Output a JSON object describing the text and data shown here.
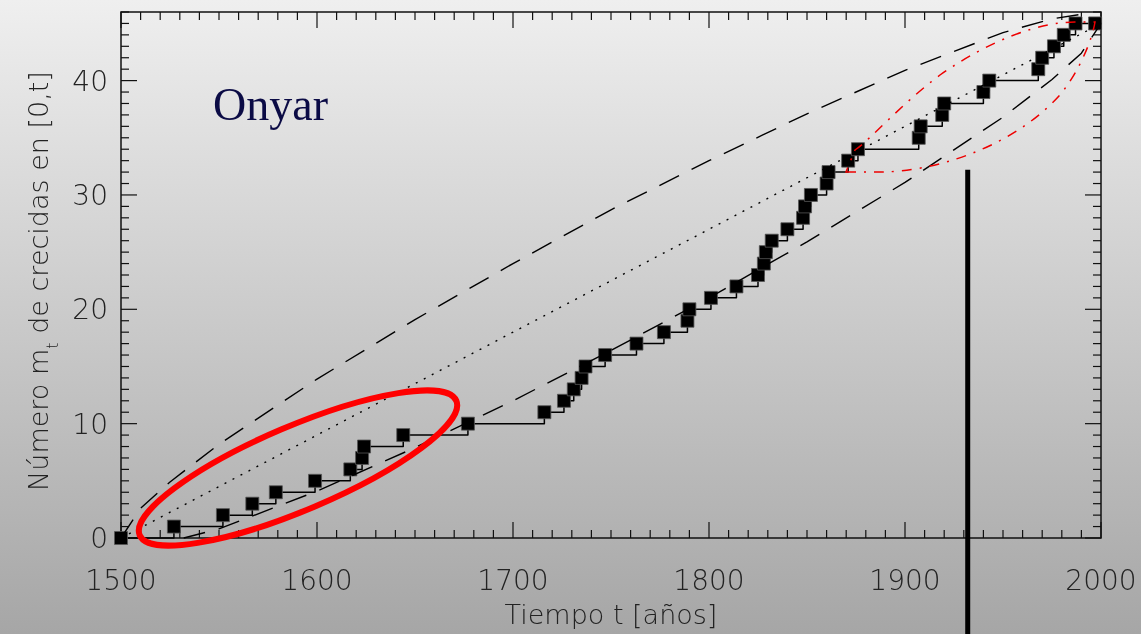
{
  "chart_data": {
    "type": "step",
    "title": "Onyar",
    "xlabel": "Tiempo t [años]",
    "ylabel": "Número m$_{t}$ de crecidas en [0,t]",
    "xlim": [
      1500,
      2000
    ],
    "ylim": [
      0,
      46
    ],
    "xticks": [
      1500,
      {
        "value": 1510,
        "label": null
      },
      {
        "value": 1520,
        "label": null
      },
      {
        "value": 1530,
        "label": null
      },
      {
        "value": 1540,
        "label": null
      },
      {
        "value": 1550,
        "label": null
      },
      {
        "value": 1560,
        "label": null
      },
      {
        "value": 1570,
        "label": null
      },
      {
        "value": 1580,
        "label": null
      },
      {
        "value": 1590,
        "label": null
      },
      1600,
      {
        "value": 1610,
        "label": null
      },
      {
        "value": 1620,
        "label": null
      },
      {
        "value": 1630,
        "label": null
      },
      {
        "value": 1640,
        "label": null
      },
      {
        "value": 1650,
        "label": null
      },
      {
        "value": 1660,
        "label": null
      },
      {
        "value": 1670,
        "label": null
      },
      {
        "value": 1680,
        "label": null
      },
      {
        "value": 1690,
        "label": null
      },
      1700,
      {
        "value": 1710,
        "label": null
      },
      {
        "value": 1720,
        "label": null
      },
      {
        "value": 1730,
        "label": null
      },
      {
        "value": 1740,
        "label": null
      },
      {
        "value": 1750,
        "label": null
      },
      {
        "value": 1760,
        "label": null
      },
      {
        "value": 1770,
        "label": null
      },
      {
        "value": 1780,
        "label": null
      },
      {
        "value": 1790,
        "label": null
      },
      1800,
      {
        "value": 1810,
        "label": null
      },
      {
        "value": 1820,
        "label": null
      },
      {
        "value": 1830,
        "label": null
      },
      {
        "value": 1840,
        "label": null
      },
      {
        "value": 1850,
        "label": null
      },
      {
        "value": 1860,
        "label": null
      },
      {
        "value": 1870,
        "label": null
      },
      {
        "value": 1880,
        "label": null
      },
      {
        "value": 1890,
        "label": null
      },
      1900,
      {
        "value": 1910,
        "label": null
      },
      {
        "value": 1920,
        "label": null
      },
      {
        "value": 1930,
        "label": null
      },
      {
        "value": 1940,
        "label": null
      },
      {
        "value": 1950,
        "label": null
      },
      {
        "value": 1960,
        "label": null
      },
      {
        "value": 1970,
        "label": null
      },
      {
        "value": 1980,
        "label": null
      },
      {
        "value": 1990,
        "label": null
      },
      2000
    ],
    "yticks": [
      0,
      {
        "value": 1,
        "label": null
      },
      {
        "value": 2,
        "label": null
      },
      {
        "value": 3,
        "label": null
      },
      {
        "value": 4,
        "label": null
      },
      {
        "value": 5,
        "label": null
      },
      {
        "value": 6,
        "label": null
      },
      {
        "value": 7,
        "label": null
      },
      {
        "value": 8,
        "label": null
      },
      {
        "value": 9,
        "label": null
      },
      10,
      {
        "value": 11,
        "label": null
      },
      {
        "value": 12,
        "label": null
      },
      {
        "value": 13,
        "label": null
      },
      {
        "value": 14,
        "label": null
      },
      {
        "value": 15,
        "label": null
      },
      {
        "value": 16,
        "label": null
      },
      {
        "value": 17,
        "label": null
      },
      {
        "value": 18,
        "label": null
      },
      {
        "value": 19,
        "label": null
      },
      20,
      {
        "value": 21,
        "label": null
      },
      {
        "value": 22,
        "label": null
      },
      {
        "value": 23,
        "label": null
      },
      {
        "value": 24,
        "label": null
      },
      {
        "value": 25,
        "label": null
      },
      {
        "value": 26,
        "label": null
      },
      {
        "value": 27,
        "label": null
      },
      {
        "value": 28,
        "label": null
      },
      {
        "value": 29,
        "label": null
      },
      30,
      {
        "value": 31,
        "label": null
      },
      {
        "value": 32,
        "label": null
      },
      {
        "value": 33,
        "label": null
      },
      {
        "value": 34,
        "label": null
      },
      {
        "value": 35,
        "label": null
      },
      {
        "value": 36,
        "label": null
      },
      {
        "value": 37,
        "label": null
      },
      {
        "value": 38,
        "label": null
      },
      {
        "value": 39,
        "label": null
      },
      40,
      {
        "value": 41,
        "label": null
      },
      {
        "value": 42,
        "label": null
      },
      {
        "value": 43,
        "label": null
      },
      {
        "value": 44,
        "label": null
      },
      {
        "value": 45,
        "label": null
      },
      {
        "value": 46,
        "label": null
      }
    ],
    "ref_lines": [
      {
        "axis": "x",
        "value": 1932,
        "color": "#000000"
      }
    ],
    "series": [
      {
        "color": "#000000",
        "marker": "square",
        "line_style": "solid",
        "x": [
          1500,
          1527,
          1552,
          1567,
          1579,
          1599,
          1617,
          1623,
          1624,
          1644,
          1677,
          1716,
          1726,
          1731,
          1735,
          1737,
          1747,
          1763,
          1777,
          1789,
          1790,
          1801,
          1814,
          1825,
          1828,
          1829,
          1832,
          1840,
          1848,
          1849,
          1852,
          1860,
          1861,
          1871,
          1876,
          1907,
          1908,
          1919,
          1920,
          1940,
          1943,
          1968,
          1970,
          1976,
          1981,
          1987,
          1997
        ],
        "values": [
          0,
          1,
          2,
          3,
          4,
          5,
          6,
          7,
          8,
          9,
          10,
          11,
          12,
          13,
          14,
          15,
          16,
          17,
          18,
          19,
          20,
          21,
          22,
          23,
          24,
          25,
          26,
          27,
          28,
          29,
          30,
          31,
          32,
          33,
          34,
          35,
          36,
          37,
          38,
          39,
          40,
          41,
          42,
          43,
          44,
          45,
          45
        ]
      },
      {
        "type": "line",
        "color": "#000000",
        "marker": "none",
        "line_style": "dotted",
        "x": [
          1500,
          2000
        ],
        "values": [
          0,
          45
        ]
      },
      {
        "type": "line",
        "color": "#000000",
        "marker": "none",
        "line_style": "dashed",
        "x": [
          1500,
          1510,
          1525,
          1550,
          1600,
          1650,
          1700,
          1750,
          1800,
          1850,
          1900,
          1950,
          1975,
          1990,
          2000
        ],
        "values": [
          0,
          2.6,
          4.9,
          8.2,
          13.9,
          19.1,
          24,
          28.7,
          33,
          37.1,
          40.9,
          44.2,
          45.4,
          45.8,
          45
        ]
      },
      {
        "type": "line",
        "color": "#000000",
        "marker": "none",
        "line_style": "dashed",
        "x": [
          1532,
          1550,
          1600,
          1650,
          1700,
          1750,
          1800,
          1850,
          1900,
          1950,
          1975,
          1990,
          2000
        ],
        "values": [
          0,
          0.8,
          4.1,
          7.9,
          12,
          16.4,
          21,
          25.9,
          31.1,
          36.8,
          40.1,
          42.4,
          45
        ]
      }
    ]
  }
}
